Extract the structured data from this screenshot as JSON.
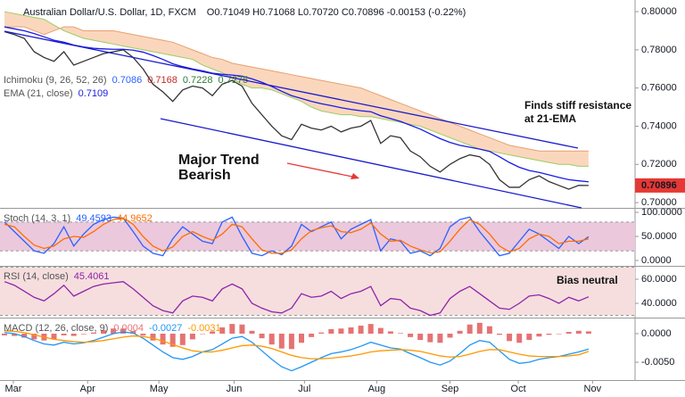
{
  "chart_data": [
    {
      "type": "line",
      "title": "Australian Dollar/U.S. Dollar, 1D, FXCM",
      "quote": "O0.71049 H0.71068 L0.70720 C0.70896 -0.00153 (-0.22%)",
      "xlim": [
        0,
        60
      ],
      "xticks": [
        {
          "value": 0.9,
          "label": "Mar"
        },
        {
          "value": 8.4,
          "label": "Apr"
        },
        {
          "value": 15.6,
          "label": "May"
        },
        {
          "value": 23.2,
          "label": "Jun"
        },
        {
          "value": 30.3,
          "label": "Jul"
        },
        {
          "value": 37.6,
          "label": "Aug"
        },
        {
          "value": 45,
          "label": "Sep"
        },
        {
          "value": 51.9,
          "label": "Oct"
        },
        {
          "value": 59.4,
          "label": "Nov"
        }
      ],
      "ylim": [
        0.6977,
        0.8061
      ],
      "yticks": [
        {
          "value": 0.8,
          "label": "0.80000"
        },
        {
          "value": 0.78,
          "label": "0.78000"
        },
        {
          "value": 0.76,
          "label": "0.76000"
        },
        {
          "value": 0.74,
          "label": "0.74000"
        },
        {
          "value": 0.72,
          "label": "0.72000"
        },
        {
          "value": 0.7,
          "label": "0.70000"
        }
      ],
      "cloud": {
        "label": "Ichimoku (9, 26, 52, 26)",
        "label_values": [
          0.7086,
          0.7168,
          0.7228,
          0.7275
        ],
        "label_colors": [
          "#2962ff",
          "#c62828",
          "#2e7d32",
          "#2e7d32"
        ],
        "color": "#f8c9a6",
        "span_a": [
          0.8,
          0.799,
          0.798,
          0.797,
          0.796,
          0.793,
          0.79,
          0.788,
          0.786,
          0.785,
          0.784,
          0.783,
          0.782,
          0.781,
          0.78,
          0.779,
          0.778,
          0.777,
          0.776,
          0.775,
          0.772,
          0.77,
          0.768,
          0.765,
          0.762,
          0.76,
          0.76,
          0.759,
          0.757,
          0.755,
          0.753,
          0.75,
          0.748,
          0.747,
          0.746,
          0.746,
          0.745,
          0.745,
          0.744,
          0.743,
          0.742,
          0.741,
          0.74,
          0.738,
          0.736,
          0.734,
          0.732,
          0.73,
          0.728,
          0.727,
          0.726,
          0.725,
          0.724,
          0.723,
          0.722,
          0.721,
          0.72,
          0.72,
          0.719,
          0.719
        ],
        "span_b": [
          0.792,
          0.792,
          0.792,
          0.79,
          0.788,
          0.79,
          0.792,
          0.792,
          0.79,
          0.79,
          0.79,
          0.79,
          0.789,
          0.788,
          0.787,
          0.786,
          0.785,
          0.784,
          0.782,
          0.78,
          0.778,
          0.776,
          0.775,
          0.773,
          0.772,
          0.771,
          0.77,
          0.769,
          0.768,
          0.767,
          0.766,
          0.765,
          0.764,
          0.763,
          0.762,
          0.761,
          0.76,
          0.758,
          0.756,
          0.754,
          0.752,
          0.75,
          0.748,
          0.746,
          0.744,
          0.742,
          0.74,
          0.738,
          0.736,
          0.734,
          0.732,
          0.73,
          0.729,
          0.728,
          0.727,
          0.727,
          0.727,
          0.727,
          0.727,
          0.727
        ]
      },
      "series": [
        {
          "color": "#333333",
          "values": [
            0.7895,
            0.788,
            0.786,
            0.779,
            0.776,
            0.774,
            0.779,
            0.772,
            0.774,
            0.776,
            0.778,
            0.779,
            0.78,
            0.776,
            0.77,
            0.762,
            0.758,
            0.753,
            0.759,
            0.761,
            0.76,
            0.756,
            0.762,
            0.764,
            0.761,
            0.752,
            0.746,
            0.74,
            0.735,
            0.733,
            0.741,
            0.739,
            0.738,
            0.74,
            0.737,
            0.739,
            0.74,
            0.743,
            0.731,
            0.735,
            0.734,
            0.727,
            0.724,
            0.719,
            0.716,
            0.72,
            0.723,
            0.725,
            0.724,
            0.72,
            0.712,
            0.708,
            0.708,
            0.712,
            0.714,
            0.711,
            0.709,
            0.707,
            0.709,
            0.70896
          ]
        },
        {
          "color": "#1a1ae6",
          "label": "EMA (21, close)",
          "label_values": [
            0.7109
          ],
          "values": [
            0.792,
            0.791,
            0.79,
            0.7885,
            0.7868,
            0.785,
            0.784,
            0.7825,
            0.7815,
            0.7808,
            0.7805,
            0.7803,
            0.7803,
            0.7798,
            0.7788,
            0.777,
            0.775,
            0.7727,
            0.7712,
            0.77,
            0.769,
            0.7678,
            0.7672,
            0.7668,
            0.7662,
            0.7648,
            0.763,
            0.7608,
            0.7583,
            0.756,
            0.7545,
            0.753,
            0.7518,
            0.7508,
            0.7497,
            0.7488,
            0.7481,
            0.7476,
            0.7455,
            0.744,
            0.7425,
            0.7405,
            0.7385,
            0.736,
            0.7335,
            0.7315,
            0.73,
            0.729,
            0.728,
            0.7268,
            0.724,
            0.721,
            0.7185,
            0.7168,
            0.7158,
            0.7145,
            0.7132,
            0.712,
            0.7114,
            0.7109
          ]
        }
      ],
      "last_color": "#e53935",
      "annotations": [
        "Major Trend",
        "Bearish",
        "Finds stiff resistance",
        "at 21-EMA"
      ]
    },
    {
      "type": "line",
      "label": "Stoch (14, 3, 1)",
      "label_values": [
        49.4593,
        44.9652
      ],
      "ylim": [
        -9.3,
        105.6
      ],
      "yticks": [
        {
          "value": 100,
          "label": "100.0000"
        },
        {
          "value": 50,
          "label": "50.0000"
        },
        {
          "value": 0,
          "label": "0.0000"
        }
      ],
      "band": [
        20,
        80
      ],
      "band_color": "#ecc8dc",
      "series": [
        {
          "color": "#2962ff",
          "values": [
            80,
            60,
            40,
            20,
            15,
            35,
            70,
            30,
            55,
            75,
            85,
            90,
            88,
            60,
            30,
            15,
            10,
            45,
            70,
            55,
            40,
            35,
            80,
            90,
            50,
            15,
            10,
            20,
            12,
            30,
            75,
            60,
            70,
            80,
            45,
            65,
            75,
            85,
            20,
            45,
            40,
            15,
            20,
            10,
            25,
            70,
            85,
            90,
            60,
            35,
            10,
            15,
            40,
            65,
            55,
            40,
            25,
            50,
            35,
            49.4593
          ]
        },
        {
          "color": "#ff6d00",
          "values": [
            75,
            70,
            50,
            32,
            25,
            30,
            45,
            50,
            48,
            60,
            75,
            85,
            88,
            75,
            50,
            30,
            20,
            28,
            50,
            60,
            50,
            42,
            55,
            75,
            70,
            45,
            22,
            15,
            15,
            22,
            45,
            62,
            68,
            72,
            60,
            58,
            65,
            78,
            55,
            40,
            42,
            30,
            22,
            16,
            18,
            40,
            65,
            85,
            75,
            55,
            30,
            18,
            25,
            45,
            55,
            50,
            35,
            40,
            40,
            44.9652
          ]
        }
      ]
    },
    {
      "type": "line",
      "label": "RSI (14, close)",
      "label_values": [
        45.4061
      ],
      "ylim": [
        28.9,
        69.6
      ],
      "yticks": [
        {
          "value": 60,
          "label": "60.0000"
        },
        {
          "value": 40,
          "label": "40.0000"
        }
      ],
      "band": [
        30,
        70
      ],
      "band_color": "#f6dede",
      "series": [
        {
          "color": "#8e24aa",
          "values": [
            58,
            55,
            50,
            45,
            42,
            48,
            55,
            46,
            50,
            54,
            56,
            57,
            58,
            52,
            45,
            38,
            34,
            32,
            42,
            46,
            45,
            42,
            52,
            56,
            52,
            40,
            36,
            33,
            32,
            36,
            48,
            45,
            46,
            50,
            44,
            48,
            50,
            54,
            38,
            44,
            43,
            36,
            34,
            30,
            32,
            44,
            50,
            54,
            48,
            42,
            36,
            35,
            40,
            46,
            47,
            44,
            40,
            45,
            42,
            45.4061
          ]
        }
      ],
      "annotations": [
        "Bias neutral"
      ]
    },
    {
      "type": "line",
      "label": "MACD (12, 26, close, 9)",
      "label_values": [
        0.0004,
        -0.0027,
        -0.0031
      ],
      "ylim": [
        -0.00797,
        0.0025
      ],
      "yticks": [
        {
          "value": 0,
          "label": "0.0000"
        },
        {
          "value": -0.005,
          "label": "-0.0050"
        }
      ],
      "series": [
        {
          "type": "bar",
          "color": "#e57373",
          "values": [
            -0.0003,
            -0.0004,
            -0.0007,
            -0.001,
            -0.0012,
            -0.001,
            -0.0003,
            -0.0004,
            -0.0001,
            0.0002,
            0.0006,
            0.0009,
            0.0009,
            0.0005,
            -0.0003,
            -0.0012,
            -0.0019,
            -0.0023,
            -0.002,
            -0.001,
            0.0,
            0.0004,
            0.0011,
            0.0017,
            0.0016,
            0.0005,
            -0.0008,
            -0.0019,
            -0.0026,
            -0.0027,
            -0.0016,
            -0.0006,
            0.0002,
            0.0008,
            0.0009,
            0.0011,
            0.0014,
            0.0017,
            0.001,
            0.0004,
            0.0001,
            -0.0006,
            -0.0011,
            -0.0015,
            -0.0016,
            -0.0007,
            0.0005,
            0.0016,
            0.0019,
            0.0013,
            -0.0002,
            -0.0013,
            -0.0016,
            -0.0011,
            -0.0005,
            -0.0002,
            0.0,
            0.0003,
            0.0005,
            0.0004
          ]
        },
        {
          "color": "#2196f3",
          "values": [
            0.0002,
            0.0,
            -0.0005,
            -0.0012,
            -0.0018,
            -0.002,
            -0.0015,
            -0.0018,
            -0.0016,
            -0.0012,
            -0.0006,
            0.0,
            0.0003,
            0.0001,
            -0.0008,
            -0.002,
            -0.0032,
            -0.0042,
            -0.0045,
            -0.004,
            -0.0032,
            -0.0028,
            -0.0018,
            -0.0008,
            -0.0005,
            -0.0015,
            -0.003,
            -0.0045,
            -0.0058,
            -0.0065,
            -0.0058,
            -0.005,
            -0.0042,
            -0.0035,
            -0.0032,
            -0.0028,
            -0.0022,
            -0.0015,
            -0.002,
            -0.0025,
            -0.0027,
            -0.0035,
            -0.0042,
            -0.005,
            -0.0055,
            -0.0048,
            -0.0035,
            -0.002,
            -0.0012,
            -0.0015,
            -0.003,
            -0.0045,
            -0.0052,
            -0.005,
            -0.0045,
            -0.0042,
            -0.004,
            -0.0036,
            -0.0032,
            -0.0027
          ]
        },
        {
          "color": "#ff9800",
          "values": [
            0.0005,
            0.0004,
            0.0002,
            -0.0002,
            -0.0006,
            -0.001,
            -0.0012,
            -0.0014,
            -0.0015,
            -0.0014,
            -0.0012,
            -0.0009,
            -0.0006,
            -0.0004,
            -0.0005,
            -0.0008,
            -0.0013,
            -0.0019,
            -0.0025,
            -0.003,
            -0.0032,
            -0.0032,
            -0.0029,
            -0.0025,
            -0.0021,
            -0.002,
            -0.0022,
            -0.0026,
            -0.0032,
            -0.0038,
            -0.0042,
            -0.0044,
            -0.0044,
            -0.0043,
            -0.0041,
            -0.0039,
            -0.0036,
            -0.0032,
            -0.003,
            -0.0029,
            -0.0028,
            -0.0029,
            -0.0031,
            -0.0035,
            -0.0039,
            -0.0041,
            -0.004,
            -0.0036,
            -0.0031,
            -0.0028,
            -0.0028,
            -0.0032,
            -0.0036,
            -0.0039,
            -0.004,
            -0.004,
            -0.004,
            -0.0039,
            -0.0037,
            -0.0031
          ]
        }
      ]
    }
  ]
}
